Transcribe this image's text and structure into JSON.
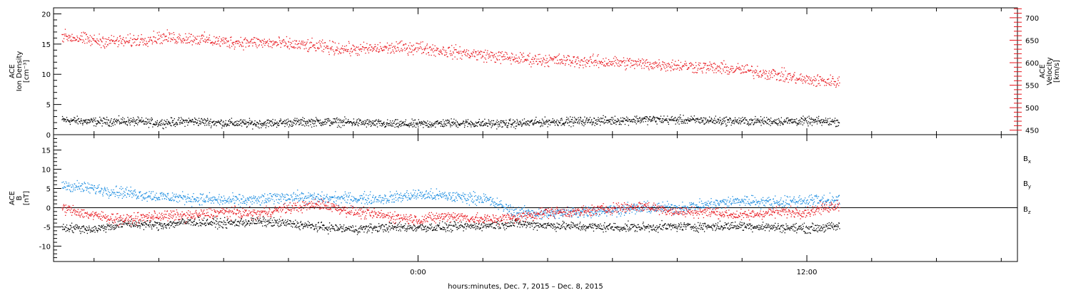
{
  "colors": {
    "black": "#000000",
    "red": "#e8141b",
    "blue": "#1a8ce0",
    "frame": "#000000"
  },
  "time_axis": {
    "range_hours": [
      -11.25,
      18.5
    ],
    "tick_labels": [
      {
        "hour": 0,
        "label": "0:00"
      },
      {
        "hour": 12,
        "label": "12:00"
      }
    ],
    "minor_tick_every_hours": 2,
    "caption": "hours:minutes, Dec.  7, 2015 – Dec.  8, 2015"
  },
  "chart_data": [
    {
      "type": "scatter",
      "panel": "top",
      "ylabel_left": [
        "ACE",
        "Ion Density",
        "[cm⁻³]"
      ],
      "ylabel_right": [
        "ACE",
        "Velocity",
        "[km/s]"
      ],
      "ylim_left": [
        0,
        21
      ],
      "ylim_right": [
        440,
        722
      ],
      "yticks_left": [
        0,
        5,
        10,
        15,
        20
      ],
      "yticks_right": [
        450,
        500,
        550,
        600,
        650,
        700
      ],
      "grid": false,
      "series": [
        {
          "axis": "left",
          "color": "black",
          "x": [
            -11.0,
            -10.0,
            -9.0,
            -8.0,
            -7.0,
            -6.0,
            -5.0,
            -4.0,
            -3.0,
            -2.0,
            -1.0,
            0.0,
            1.0,
            2.0,
            3.0,
            4.0,
            5.0,
            6.0,
            7.0,
            8.0,
            9.0,
            10.0,
            11.0,
            12.0,
            13.0
          ],
          "y": [
            2.5,
            2.2,
            2.3,
            2.0,
            2.3,
            2.0,
            1.9,
            2.1,
            2.2,
            2.1,
            1.8,
            1.8,
            2.0,
            1.9,
            1.9,
            2.2,
            2.3,
            2.4,
            2.6,
            2.5,
            2.4,
            2.3,
            2.3,
            2.3,
            2.2
          ],
          "scatter": 0.6
        },
        {
          "axis": "right",
          "color": "red",
          "x": [
            -11.0,
            -10.0,
            -9.0,
            -8.0,
            -7.0,
            -6.0,
            -5.0,
            -4.0,
            -3.0,
            -2.0,
            -1.0,
            0.0,
            1.0,
            2.0,
            3.0,
            4.0,
            5.0,
            6.0,
            7.0,
            8.0,
            9.0,
            10.0,
            11.0,
            12.0,
            13.0
          ],
          "y": [
            660,
            650,
            648,
            657,
            655,
            647,
            646,
            642,
            636,
            630,
            633,
            635,
            625,
            618,
            610,
            607,
            604,
            602,
            598,
            595,
            590,
            585,
            575,
            562,
            558
          ],
          "scatter": 12
        }
      ]
    },
    {
      "type": "scatter",
      "panel": "bottom",
      "ylabel_left": [
        "ACE",
        "B",
        "[nT]"
      ],
      "ylim": [
        -14,
        19
      ],
      "yticks": [
        -10,
        -5,
        0,
        5,
        10,
        15
      ],
      "zero_line": true,
      "grid": false,
      "legend_placement": "right",
      "series": [
        {
          "name": "Bx",
          "color": "black",
          "x": [
            -11.0,
            -10.0,
            -9.0,
            -8.0,
            -7.0,
            -6.0,
            -5.0,
            -4.0,
            -3.0,
            -2.0,
            -1.0,
            0.0,
            1.0,
            2.0,
            3.0,
            4.0,
            5.0,
            6.0,
            7.0,
            8.0,
            9.0,
            10.0,
            11.0,
            12.0,
            13.0
          ],
          "y": [
            -5,
            -5.5,
            -4,
            -4.5,
            -3.5,
            -4,
            -3.5,
            -4,
            -5,
            -5.5,
            -5,
            -5,
            -5,
            -4.5,
            -4,
            -4.5,
            -4.8,
            -5,
            -5,
            -4.8,
            -4.8,
            -4.6,
            -5,
            -5.3,
            -4.8
          ],
          "scatter": 1.0
        },
        {
          "name": "By",
          "color": "blue",
          "x": [
            -11.0,
            -10.0,
            -9.0,
            -8.0,
            -7.0,
            -6.0,
            -5.0,
            -4.0,
            -3.0,
            -2.0,
            -1.0,
            0.0,
            1.0,
            2.0,
            3.0,
            4.0,
            5.0,
            6.0,
            7.0,
            8.0,
            9.0,
            10.0,
            11.0,
            12.0,
            13.0
          ],
          "y": [
            6,
            5,
            4,
            3,
            2.5,
            2,
            2,
            3,
            2.5,
            2.5,
            2.5,
            3.5,
            3,
            2.5,
            -1,
            -1.5,
            -1,
            -0.5,
            0,
            0,
            1,
            2,
            1.5,
            2,
            2
          ],
          "scatter": 1.3
        },
        {
          "name": "Bz",
          "color": "red",
          "x": [
            -11.0,
            -10.0,
            -9.0,
            -8.0,
            -7.0,
            -6.0,
            -5.0,
            -4.0,
            -3.0,
            -2.0,
            -1.0,
            0.0,
            1.0,
            2.0,
            3.0,
            4.0,
            5.0,
            6.0,
            7.0,
            8.0,
            9.0,
            10.0,
            11.0,
            12.0,
            13.0
          ],
          "y": [
            0,
            -2,
            -3,
            -2,
            -2,
            -1,
            -1.5,
            0,
            1,
            -1,
            -2,
            -3,
            -2,
            -3,
            -2.5,
            -1,
            -1,
            0,
            0.5,
            -1,
            -1,
            -2,
            -1,
            -1,
            1
          ],
          "scatter": 1.2
        }
      ]
    }
  ]
}
